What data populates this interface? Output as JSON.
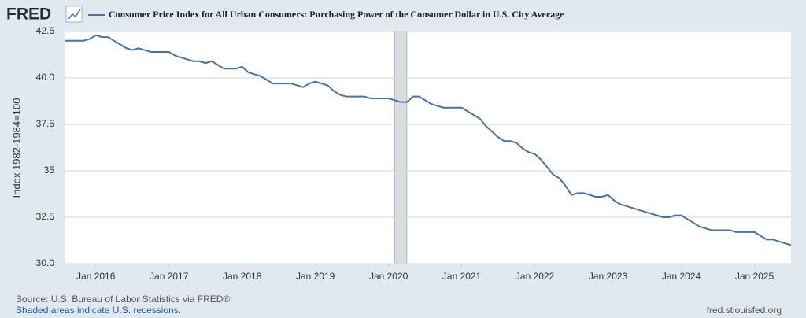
{
  "logo": "FRED",
  "chart_data": {
    "type": "line",
    "series": [
      {
        "name": "Consumer Price Index for All Urban Consumers: Purchasing Power of the Consumer Dollar in U.S. City Average",
        "color": "#4572a7",
        "values": [
          42.0,
          42.0,
          42.0,
          42.0,
          42.1,
          42.3,
          42.2,
          42.2,
          42.0,
          41.8,
          41.6,
          41.5,
          41.6,
          41.5,
          41.4,
          41.4,
          41.4,
          41.4,
          41.2,
          41.1,
          41.0,
          40.9,
          40.9,
          40.8,
          40.9,
          40.7,
          40.5,
          40.5,
          40.5,
          40.6,
          40.3,
          40.2,
          40.1,
          39.9,
          39.7,
          39.7,
          39.7,
          39.7,
          39.6,
          39.5,
          39.7,
          39.8,
          39.7,
          39.6,
          39.3,
          39.1,
          39.0,
          39.0,
          39.0,
          39.0,
          38.9,
          38.9,
          38.9,
          38.9,
          38.8,
          38.7,
          38.7,
          39.0,
          39.0,
          38.8,
          38.6,
          38.5,
          38.4,
          38.4,
          38.4,
          38.4,
          38.2,
          38.0,
          37.8,
          37.4,
          37.1,
          36.8,
          36.6,
          36.6,
          36.5,
          36.2,
          36.0,
          35.9,
          35.6,
          35.2,
          34.8,
          34.6,
          34.2,
          33.7,
          33.8,
          33.8,
          33.7,
          33.6,
          33.6,
          33.7,
          33.4,
          33.2,
          33.1,
          33.0,
          32.9,
          32.8,
          32.7,
          32.6,
          32.5,
          32.5,
          32.6,
          32.6,
          32.4,
          32.2,
          32.0,
          31.9,
          31.8,
          31.8,
          31.8,
          31.8,
          31.7,
          31.7,
          31.7,
          31.7,
          31.5,
          31.3,
          31.3,
          31.2,
          31.1,
          31.0
        ]
      }
    ],
    "x": [
      "2015-08",
      "2015-09",
      "2015-10",
      "2015-11",
      "2015-12",
      "2016-01",
      "2016-02",
      "2016-03",
      "2016-04",
      "2016-05",
      "2016-06",
      "2016-07",
      "2016-08",
      "2016-09",
      "2016-10",
      "2016-11",
      "2016-12",
      "2017-01",
      "2017-02",
      "2017-03",
      "2017-04",
      "2017-05",
      "2017-06",
      "2017-07",
      "2017-08",
      "2017-09",
      "2017-10",
      "2017-11",
      "2017-12",
      "2018-01",
      "2018-02",
      "2018-03",
      "2018-04",
      "2018-05",
      "2018-06",
      "2018-07",
      "2018-08",
      "2018-09",
      "2018-10",
      "2018-11",
      "2018-12",
      "2019-01",
      "2019-02",
      "2019-03",
      "2019-04",
      "2019-05",
      "2019-06",
      "2019-07",
      "2019-08",
      "2019-09",
      "2019-10",
      "2019-11",
      "2019-12",
      "2020-01",
      "2020-02",
      "2020-03",
      "2020-04",
      "2020-05",
      "2020-06",
      "2020-07",
      "2020-08",
      "2020-09",
      "2020-10",
      "2020-11",
      "2020-12",
      "2021-01",
      "2021-02",
      "2021-03",
      "2021-04",
      "2021-05",
      "2021-06",
      "2021-07",
      "2021-08",
      "2021-09",
      "2021-10",
      "2021-11",
      "2021-12",
      "2022-01",
      "2022-02",
      "2022-03",
      "2022-04",
      "2022-05",
      "2022-06",
      "2022-07",
      "2022-08",
      "2022-09",
      "2022-10",
      "2022-11",
      "2022-12",
      "2023-01",
      "2023-02",
      "2023-03",
      "2023-04",
      "2023-05",
      "2023-06",
      "2023-07",
      "2023-08",
      "2023-09",
      "2023-10",
      "2023-11",
      "2023-12",
      "2024-01",
      "2024-02",
      "2024-03",
      "2024-04",
      "2024-05",
      "2024-06",
      "2024-07",
      "2024-08",
      "2024-09",
      "2024-10",
      "2024-11",
      "2024-12",
      "2025-01",
      "2025-02",
      "2025-03",
      "2025-04",
      "2025-05",
      "2025-06",
      "2025-07"
    ],
    "xlim": [
      "2015-08",
      "2025-07"
    ],
    "xticks": [
      {
        "value": "2016-01",
        "label": "Jan 2016"
      },
      {
        "value": "2017-01",
        "label": "Jan 2017"
      },
      {
        "value": "2018-01",
        "label": "Jan 2018"
      },
      {
        "value": "2019-01",
        "label": "Jan 2019"
      },
      {
        "value": "2020-01",
        "label": "Jan 2020"
      },
      {
        "value": "2021-01",
        "label": "Jan 2021"
      },
      {
        "value": "2022-01",
        "label": "Jan 2022"
      },
      {
        "value": "2023-01",
        "label": "Jan 2023"
      },
      {
        "value": "2024-01",
        "label": "Jan 2024"
      },
      {
        "value": "2025-01",
        "label": "Jan 2025"
      }
    ],
    "ylim": [
      30,
      42.5
    ],
    "yticks": [
      {
        "value": 30,
        "label": "30.0"
      },
      32.5,
      35,
      37.5,
      {
        "value": 40,
        "label": "40.0"
      },
      42.5
    ],
    "y_label": "Index 1982-1984=100",
    "grid": true,
    "recessions": [
      {
        "start": "2020-02",
        "end": "2020-04"
      }
    ],
    "recession_color": "#d9dde2"
  },
  "footer": {
    "source": "Source: U.S. Bureau of Labor Statistics via FRED®",
    "note": "Shaded areas indicate U.S. recessions.",
    "site": "fred.stlouisfed.org"
  }
}
